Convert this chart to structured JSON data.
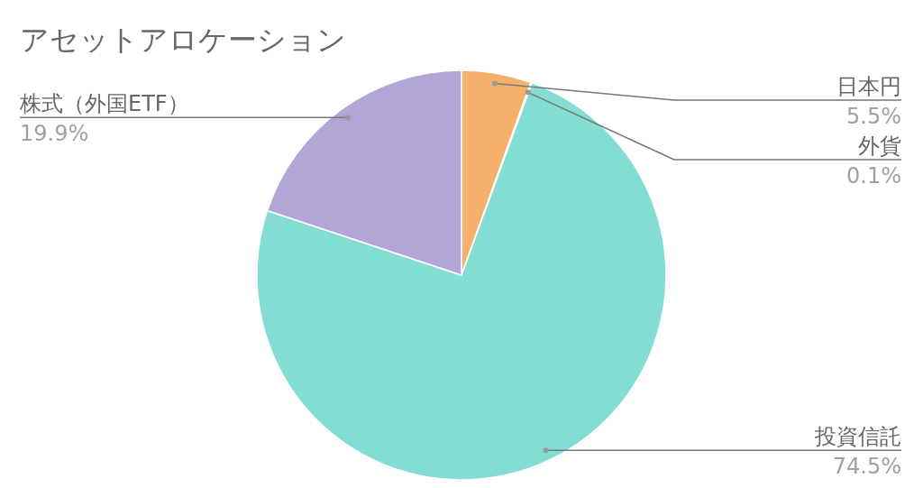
{
  "chart_data": {
    "type": "pie",
    "title": "アセットアロケーション",
    "categories": [
      "日本円",
      "外貨",
      "投資信託",
      "株式（外国ETF）"
    ],
    "values": [
      5.5,
      0.1,
      74.5,
      19.9
    ],
    "colors": [
      "#f5b06b",
      "#f4c2c2",
      "#83ddd3",
      "#b3a6d6"
    ],
    "value_labels": [
      "5.5%",
      "0.1%",
      "74.5%",
      "19.9%"
    ]
  }
}
